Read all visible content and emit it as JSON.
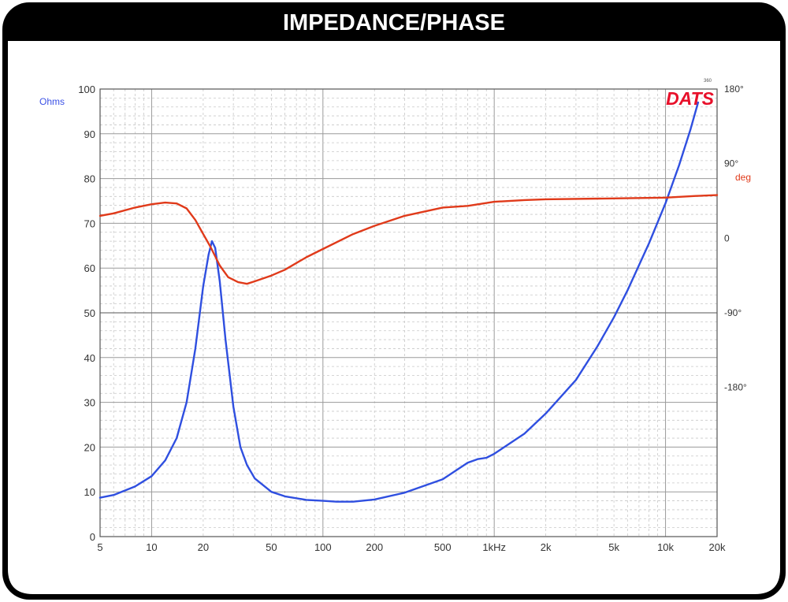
{
  "header": {
    "title": "IMPEDANCE/PHASE"
  },
  "colors": {
    "frame": "#000000",
    "impedance": "#2f4fe0",
    "phase": "#e03a1a",
    "brand": "#e8102a",
    "grid_major": "#9a9a9a",
    "grid_minor": "#c8c8c8",
    "tick_text": "#333333"
  },
  "chart_data": {
    "type": "line",
    "xscale": "log",
    "xlim": [
      5,
      20000
    ],
    "grid": true,
    "brand_label": "DATS",
    "corner_tick": "360",
    "x_ticks": [
      {
        "v": 5,
        "label": "5"
      },
      {
        "v": 10,
        "label": "10"
      },
      {
        "v": 20,
        "label": "20"
      },
      {
        "v": 50,
        "label": "50"
      },
      {
        "v": 100,
        "label": "100"
      },
      {
        "v": 200,
        "label": "200"
      },
      {
        "v": 500,
        "label": "500"
      },
      {
        "v": 1000,
        "label": "1kHz"
      },
      {
        "v": 2000,
        "label": "2k"
      },
      {
        "v": 5000,
        "label": "5k"
      },
      {
        "v": 10000,
        "label": "10k"
      },
      {
        "v": 20000,
        "label": "20k"
      }
    ],
    "y_left": {
      "label": "Ohms",
      "lim": [
        0,
        100
      ],
      "ticks": [
        "0",
        "10",
        "20",
        "30",
        "40",
        "50",
        "60",
        "70",
        "80",
        "90",
        "100"
      ]
    },
    "y_right": {
      "unit": "deg",
      "lim": [
        -360,
        180
      ],
      "ticks": [
        {
          "v": 180,
          "label": "180°"
        },
        {
          "v": 90,
          "label": "90°"
        },
        {
          "v": 0,
          "label": "0"
        },
        {
          "v": -90,
          "label": "-90°"
        },
        {
          "v": -180,
          "label": "-180°"
        }
      ]
    },
    "series": [
      {
        "axis": "left",
        "points": [
          [
            5,
            8.7
          ],
          [
            6,
            9.3
          ],
          [
            8,
            11.2
          ],
          [
            10,
            13.5
          ],
          [
            12,
            17
          ],
          [
            14,
            22
          ],
          [
            16,
            30
          ],
          [
            18,
            42
          ],
          [
            20,
            56
          ],
          [
            21.5,
            63
          ],
          [
            22.5,
            66
          ],
          [
            23.5,
            64.5
          ],
          [
            25,
            57
          ],
          [
            27,
            44
          ],
          [
            30,
            29
          ],
          [
            33,
            20
          ],
          [
            36,
            16
          ],
          [
            40,
            13
          ],
          [
            50,
            10
          ],
          [
            60,
            9
          ],
          [
            80,
            8.2
          ],
          [
            100,
            8
          ],
          [
            120,
            7.8
          ],
          [
            150,
            7.8
          ],
          [
            200,
            8.3
          ],
          [
            300,
            9.8
          ],
          [
            500,
            12.8
          ],
          [
            700,
            16.5
          ],
          [
            800,
            17.3
          ],
          [
            900,
            17.6
          ],
          [
            1000,
            18.5
          ],
          [
            1500,
            23
          ],
          [
            2000,
            27.5
          ],
          [
            3000,
            35
          ],
          [
            4000,
            42.5
          ],
          [
            5000,
            49
          ],
          [
            6000,
            55
          ],
          [
            8000,
            65.5
          ],
          [
            10000,
            74.5
          ],
          [
            12000,
            83
          ],
          [
            14000,
            91
          ],
          [
            15500,
            97
          ]
        ]
      },
      {
        "axis": "right",
        "points": [
          [
            5,
            27
          ],
          [
            6,
            30
          ],
          [
            8,
            37
          ],
          [
            10,
            41
          ],
          [
            12,
            43
          ],
          [
            14,
            42
          ],
          [
            16,
            36
          ],
          [
            18,
            22
          ],
          [
            20,
            5
          ],
          [
            22,
            -10
          ],
          [
            25,
            -33
          ],
          [
            28,
            -47
          ],
          [
            32,
            -53
          ],
          [
            36,
            -55
          ],
          [
            40,
            -52
          ],
          [
            50,
            -45
          ],
          [
            60,
            -38
          ],
          [
            80,
            -23
          ],
          [
            100,
            -13
          ],
          [
            150,
            5
          ],
          [
            200,
            15
          ],
          [
            300,
            27
          ],
          [
            500,
            37
          ],
          [
            700,
            39
          ],
          [
            1000,
            44
          ],
          [
            1500,
            46
          ],
          [
            2000,
            47
          ],
          [
            5000,
            48
          ],
          [
            10000,
            49
          ],
          [
            15000,
            51
          ],
          [
            20000,
            52
          ]
        ]
      }
    ]
  }
}
